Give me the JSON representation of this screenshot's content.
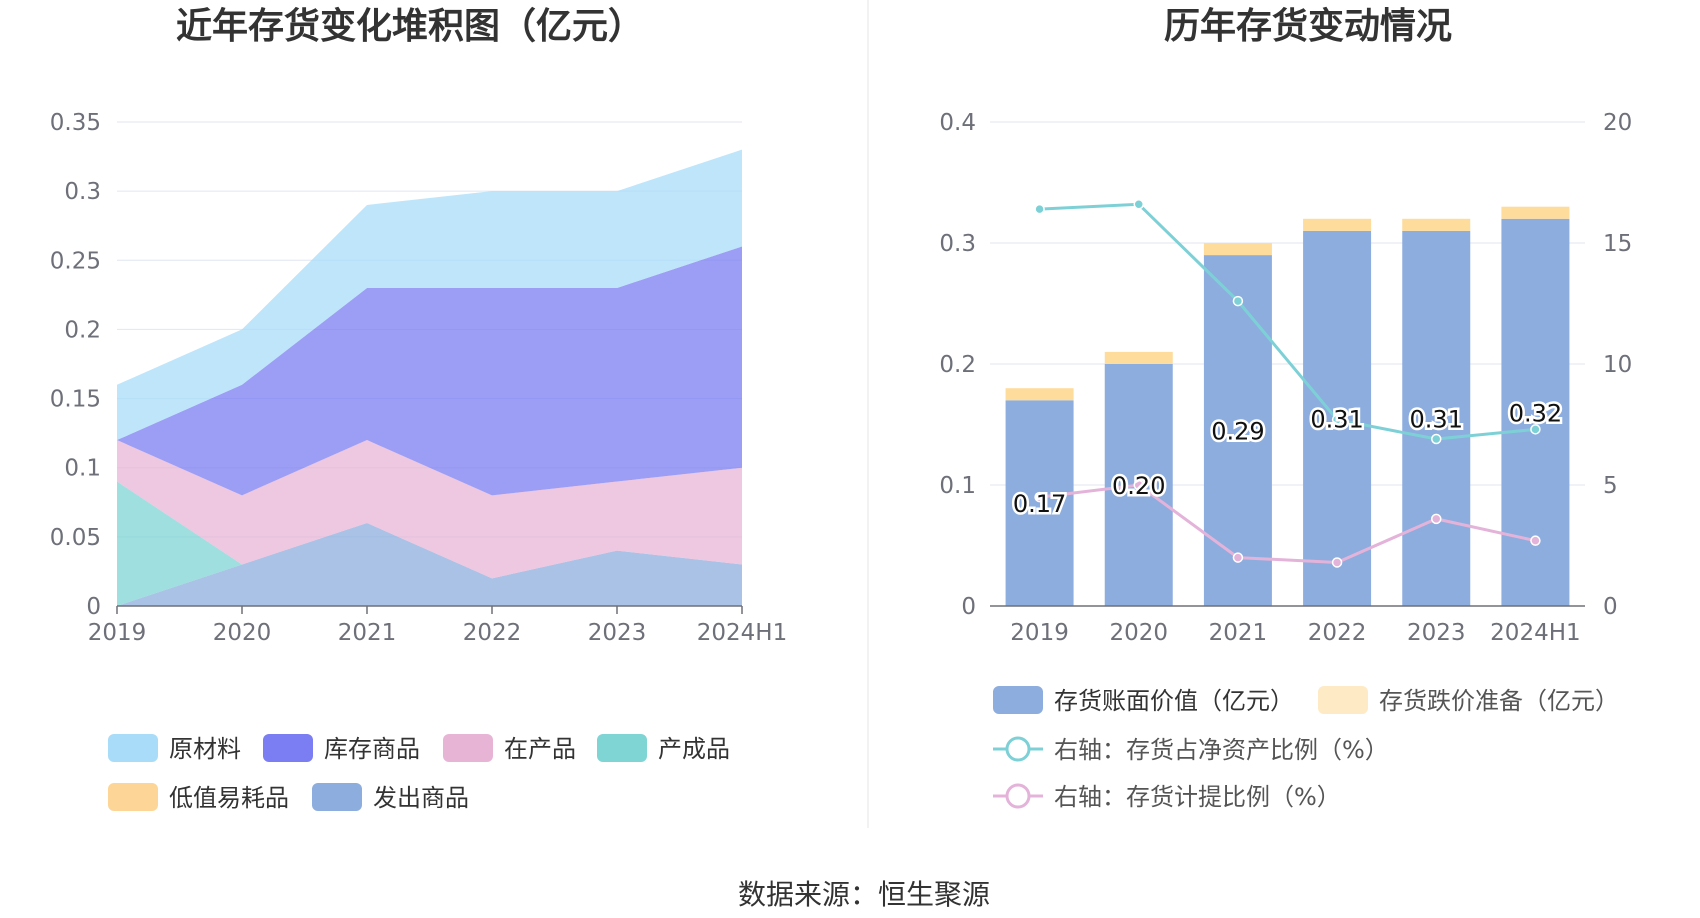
{
  "source_text": "数据来源：恒生聚源",
  "chart_data": [
    {
      "type": "area",
      "stacked": true,
      "title": "近年存货变化堆积图（亿元）",
      "categories": [
        "2019",
        "2020",
        "2021",
        "2022",
        "2023",
        "2024H1"
      ],
      "ylim": [
        0,
        0.35
      ],
      "yticks": [
        "0",
        "0.05",
        "0.1",
        "0.15",
        "0.2",
        "0.25",
        "0.3",
        "0.35"
      ],
      "yticks_values": [
        0,
        0.05,
        0.1,
        0.15,
        0.2,
        0.25,
        0.3,
        0.35
      ],
      "grid": true,
      "legend_position": "bottom",
      "series": [
        {
          "name": "原材料",
          "color": "#a8dcf8",
          "values": [
            0.04,
            0.04,
            0.06,
            0.07,
            0.07,
            0.07
          ]
        },
        {
          "name": "库存商品",
          "color": "#7b7ef2",
          "values": [
            0.0,
            0.08,
            0.11,
            0.15,
            0.14,
            0.16
          ]
        },
        {
          "name": "在产品",
          "color": "#e8b4d6",
          "values": [
            0.03,
            0.05,
            0.06,
            0.06,
            0.05,
            0.07
          ]
        },
        {
          "name": "产成品",
          "color": "#7fd4d4",
          "values": [
            0.09,
            0.0,
            0.0,
            0.0,
            0.0,
            0.0
          ]
        },
        {
          "name": "低值易耗品",
          "color": "#fdd596",
          "values": [
            0,
            0,
            0,
            0,
            0,
            0
          ]
        },
        {
          "name": "发出商品",
          "color": "#8dadde",
          "values": [
            0.0,
            0.03,
            0.06,
            0.02,
            0.04,
            0.03
          ]
        }
      ]
    },
    {
      "type": "bar",
      "stacked": true,
      "title": "历年存货变动情况",
      "categories": [
        "2019",
        "2020",
        "2021",
        "2022",
        "2023",
        "2024H1"
      ],
      "ylim": [
        0,
        0.4
      ],
      "yticks": [
        "0",
        "0.1",
        "0.2",
        "0.3",
        "0.4"
      ],
      "yticks_values": [
        0,
        0.1,
        0.2,
        0.3,
        0.4
      ],
      "y2lim": [
        0,
        20
      ],
      "y2ticks": [
        "0",
        "5",
        "10",
        "15",
        "20"
      ],
      "y2ticks_values": [
        0,
        5,
        10,
        15,
        20
      ],
      "legend_position": "bottom",
      "series": [
        {
          "name": "存货账面价值（亿元）",
          "kind": "bar",
          "color": "#8dadde",
          "values": [
            0.17,
            0.2,
            0.29,
            0.31,
            0.31,
            0.32
          ],
          "labels": [
            "0.17",
            "0.20",
            "0.29",
            "0.31",
            "0.31",
            "0.32"
          ]
        },
        {
          "name": "存货跌价准备（亿元）",
          "kind": "bar",
          "color": "#fddc9c",
          "values": [
            0.01,
            0.01,
            0.01,
            0.01,
            0.01,
            0.01
          ]
        },
        {
          "name": "右轴：存货占净资产比例（%）",
          "kind": "line",
          "axis": "right",
          "color": "#7dd1d6",
          "values": [
            16.4,
            16.6,
            12.6,
            7.7,
            6.9,
            7.3
          ]
        },
        {
          "name": "右轴：存货计提比例（%）",
          "kind": "line",
          "axis": "right",
          "color": "#e4b3d9",
          "values": [
            4.5,
            5.0,
            2.0,
            1.8,
            3.6,
            2.7
          ]
        }
      ]
    }
  ]
}
